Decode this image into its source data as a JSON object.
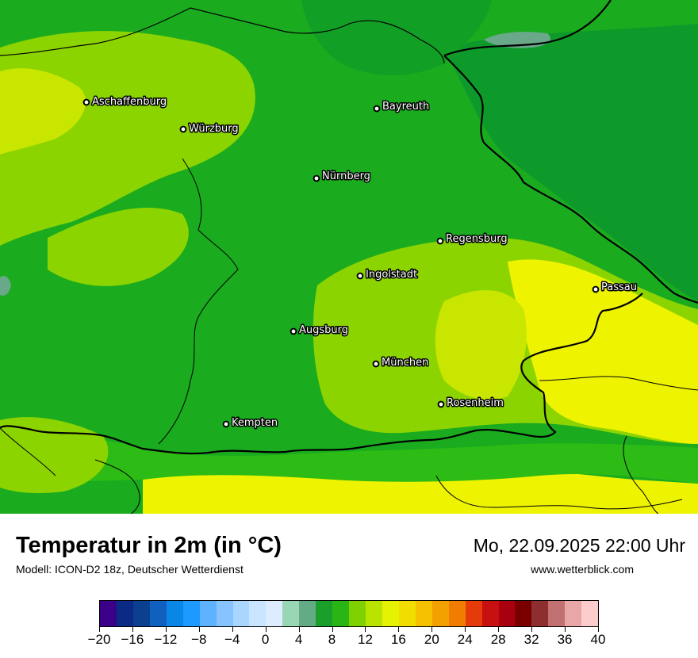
{
  "map": {
    "cities": [
      {
        "name": "Aschaffenburg"
      },
      {
        "name": "Würzburg"
      },
      {
        "name": "Bayreuth"
      },
      {
        "name": "Nürnberg"
      },
      {
        "name": "Regensburg"
      },
      {
        "name": "Ingolstadt"
      },
      {
        "name": "Passau"
      },
      {
        "name": "Augsburg"
      },
      {
        "name": "München"
      },
      {
        "name": "Rosenheim"
      },
      {
        "name": "Kempten"
      }
    ],
    "colors": {
      "base": "#1aab1f",
      "green_dark": "#0e9a2a",
      "green_mid": "#2dbb15",
      "green_light": "#8cd400",
      "yellow_green": "#c8e600",
      "yellow": "#eef400",
      "teal": "#6aa88a",
      "border": "#000000"
    }
  },
  "footer": {
    "title": "Temperatur in 2m (in °C)",
    "subtitle": "Modell: ICON-D2 18z, Deutscher Wetterdienst",
    "datetime": "Mo, 22.09.2025 22:00 Uhr",
    "website": "www.wetterblick.com"
  },
  "scale": {
    "min": -20,
    "max": 40,
    "tick_labels": [
      "−20",
      "−16",
      "−12",
      "−8",
      "−4",
      "0",
      "4",
      "8",
      "12",
      "16",
      "20",
      "24",
      "28",
      "32",
      "36",
      "40"
    ],
    "colors": [
      "#3a0089",
      "#0b2a86",
      "#0b3f8f",
      "#0f60bf",
      "#0a86e6",
      "#1c9aff",
      "#5fb2ff",
      "#86c3ff",
      "#a9d6ff",
      "#c9e5ff",
      "#ddecff",
      "#98d6b4",
      "#63ab84",
      "#1aa02a",
      "#28b515",
      "#7fd100",
      "#b8e400",
      "#e6f300",
      "#f1dd00",
      "#f4c000",
      "#f3a100",
      "#f07d00",
      "#e53b0a",
      "#c81010",
      "#a8000e",
      "#7a0000",
      "#8e2e2e",
      "#c17171",
      "#e8a6a6",
      "#fdcccc"
    ]
  }
}
